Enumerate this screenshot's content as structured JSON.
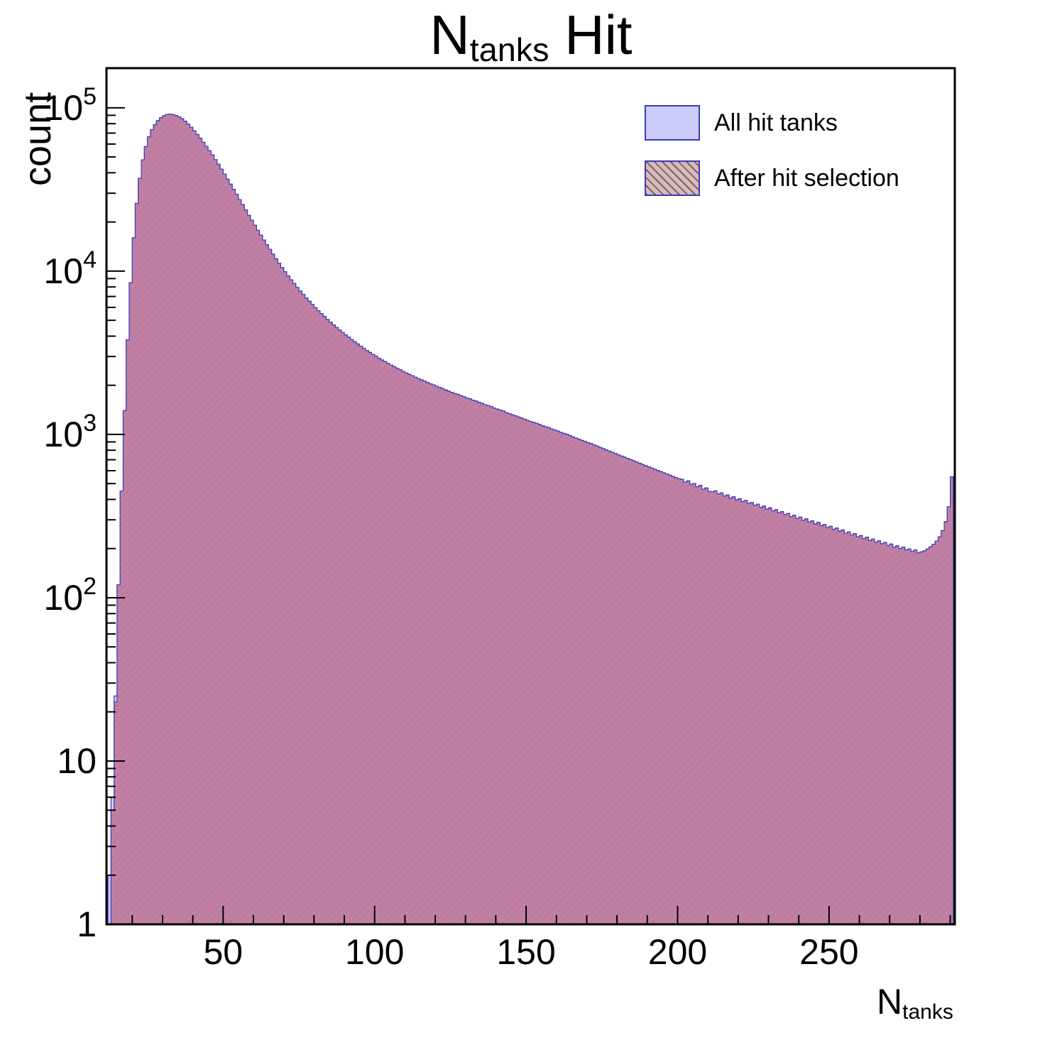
{
  "chart_data": {
    "type": "bar",
    "subtype": "histogram",
    "title": "N_tanks Hit",
    "title_parts": {
      "prefix": "N",
      "sub": "tanks",
      "suffix": " Hit"
    },
    "ylabel": "count",
    "xlabel": "N_tanks",
    "xlabel_parts": {
      "prefix": "N",
      "sub": "tanks"
    },
    "y_scale": "log",
    "grid": false,
    "legend_position": "top-right",
    "x_start": 12,
    "bin_width": 1,
    "xlim": [
      11.5,
      291.5
    ],
    "ylim": [
      1,
      175000
    ],
    "xticks": [
      50,
      100,
      150,
      200,
      250
    ],
    "x_minor_step": 10,
    "ytick_labels": [
      {
        "t": "1"
      },
      {
        "t": "10"
      },
      {
        "t": "10",
        "s": "2"
      },
      {
        "t": "10",
        "s": "3"
      },
      {
        "t": "10",
        "s": "4"
      },
      {
        "t": "10",
        "s": "5"
      }
    ],
    "colors": {
      "all_fill": "#ccccfc",
      "selected_fill": "#c27fa6",
      "hist_stroke": "#3a3ab8",
      "hatch_line": "#6b7040",
      "legend_pink": "#dcb6c6",
      "axis": "#000000"
    },
    "series": [
      {
        "name": "All hit tanks",
        "values": [
          2,
          6,
          25,
          120,
          450,
          1400,
          3800,
          8500,
          16000,
          26000,
          37000,
          48000,
          58000,
          66500,
          73500,
          79000,
          83500,
          87000,
          89500,
          91000,
          91500,
          91000,
          89800,
          88000,
          85600,
          82700,
          79500,
          76000,
          72400,
          68800,
          65200,
          61600,
          58100,
          54700,
          51400,
          48200,
          45100,
          42100,
          39300,
          36600,
          34100,
          31700,
          29500,
          27400,
          25500,
          23700,
          22000,
          20500,
          19100,
          17800,
          16600,
          15500,
          14500,
          13600,
          12700,
          11900,
          11200,
          10500,
          9900,
          9350,
          8850,
          8400,
          7950,
          7550,
          7200,
          6850,
          6550,
          6250,
          5980,
          5730,
          5490,
          5270,
          5060,
          4870,
          4690,
          4520,
          4360,
          4210,
          4070,
          3940,
          3810,
          3690,
          3580,
          3470,
          3370,
          3270,
          3180,
          3090,
          3010,
          2930,
          2860,
          2790,
          2720,
          2660,
          2600,
          2540,
          2490,
          2430,
          2380,
          2330,
          2290,
          2240,
          2200,
          2160,
          2120,
          2080,
          2040,
          2010,
          1970,
          1940,
          1910,
          1870,
          1840,
          1810,
          1780,
          1760,
          1730,
          1700,
          1670,
          1650,
          1620,
          1600,
          1570,
          1550,
          1520,
          1500,
          1480,
          1450,
          1430,
          1410,
          1390,
          1360,
          1340,
          1320,
          1300,
          1280,
          1260,
          1240,
          1220,
          1200,
          1185,
          1170,
          1150,
          1130,
          1115,
          1100,
          1080,
          1065,
          1050,
          1030,
          1015,
          1000,
          985,
          965,
          950,
          935,
          920,
          905,
          890,
          878,
          862,
          848,
          833,
          818,
          805,
          790,
          777,
          764,
          750,
          738,
          726,
          713,
          701,
          690,
          678,
          666,
          655,
          644,
          633,
          622,
          612,
          602,
          592,
          582,
          572,
          563,
          553,
          544,
          535,
          530,
          510,
          520,
          495,
          500,
          478,
          488,
          462,
          470,
          448,
          445,
          452,
          432,
          438,
          420,
          426,
          408,
          415,
          398,
          404,
          388,
          394,
          378,
          383,
          368,
          374,
          358,
          364,
          349,
          355,
          340,
          346,
          331,
          337,
          323,
          328,
          314,
          320,
          306,
          312,
          298,
          304,
          291,
          296,
          283,
          289,
          276,
          281,
          269,
          274,
          262,
          267,
          255,
          260,
          248,
          253,
          242,
          247,
          236,
          240,
          230,
          235,
          224,
          229,
          219,
          223,
          214,
          218,
          209,
          213,
          204,
          208,
          200,
          204,
          196,
          199,
          192,
          196,
          188,
          191,
          194,
          199,
          205,
          212,
          222,
          236,
          258,
          292,
          360,
          550
        ]
      },
      {
        "name": "After hit selection",
        "values": [
          1,
          5,
          23,
          120,
          450,
          1400,
          3800,
          8500,
          16000,
          26000,
          37000,
          48000,
          58000,
          66500,
          73500,
          79000,
          83500,
          87000,
          89500,
          91000,
          91500,
          91000,
          89800,
          88000,
          85600,
          82700,
          79500,
          76000,
          72400,
          68800,
          65200,
          61600,
          58100,
          54700,
          51400,
          48200,
          45100,
          42100,
          39300,
          36600,
          34100,
          31700,
          29500,
          27400,
          25500,
          23700,
          22000,
          20500,
          19100,
          17800,
          16600,
          15500,
          14500,
          13600,
          12700,
          11900,
          11200,
          10500,
          9900,
          9350,
          8850,
          8400,
          7950,
          7550,
          7200,
          6850,
          6550,
          6250,
          5980,
          5730,
          5490,
          5270,
          5060,
          4870,
          4690,
          4520,
          4360,
          4210,
          4070,
          3940,
          3810,
          3690,
          3580,
          3470,
          3370,
          3270,
          3180,
          3090,
          3010,
          2930,
          2860,
          2790,
          2720,
          2660,
          2600,
          2540,
          2490,
          2430,
          2380,
          2330,
          2290,
          2240,
          2200,
          2160,
          2120,
          2080,
          2040,
          2010,
          1970,
          1940,
          1910,
          1870,
          1840,
          1810,
          1780,
          1760,
          1730,
          1700,
          1670,
          1650,
          1620,
          1600,
          1570,
          1550,
          1520,
          1500,
          1480,
          1450,
          1430,
          1410,
          1390,
          1360,
          1340,
          1320,
          1300,
          1280,
          1260,
          1240,
          1220,
          1200,
          1185,
          1170,
          1150,
          1130,
          1115,
          1100,
          1080,
          1065,
          1050,
          1030,
          1015,
          1000,
          985,
          965,
          950,
          935,
          920,
          905,
          890,
          878,
          862,
          848,
          833,
          818,
          805,
          790,
          777,
          764,
          750,
          738,
          726,
          713,
          701,
          690,
          678,
          666,
          655,
          644,
          633,
          622,
          612,
          602,
          592,
          582,
          572,
          563,
          553,
          544,
          535,
          530,
          510,
          520,
          495,
          500,
          478,
          488,
          462,
          470,
          448,
          445,
          452,
          432,
          438,
          420,
          426,
          408,
          415,
          398,
          404,
          388,
          394,
          378,
          383,
          368,
          374,
          358,
          364,
          349,
          355,
          340,
          346,
          331,
          337,
          323,
          328,
          314,
          320,
          306,
          312,
          298,
          304,
          291,
          296,
          283,
          289,
          276,
          281,
          269,
          274,
          262,
          267,
          255,
          260,
          248,
          253,
          242,
          247,
          236,
          240,
          230,
          235,
          224,
          229,
          219,
          223,
          214,
          218,
          209,
          213,
          204,
          208,
          200,
          204,
          196,
          199,
          192,
          196,
          188,
          191,
          194,
          199,
          205,
          212,
          222,
          236,
          258,
          292,
          360,
          550
        ]
      }
    ]
  }
}
